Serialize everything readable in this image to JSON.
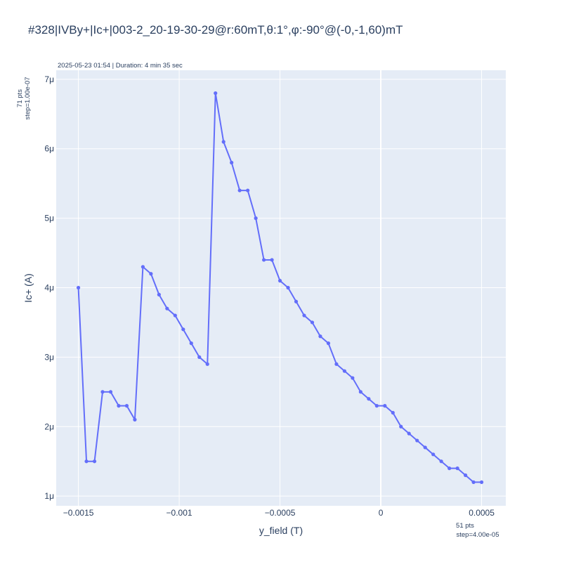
{
  "title": "#328|IVBy+|Ic+|003-2_20-19-30-29@r:60mT,θ:1°,φ:-90°@(-0,-1,60)mT",
  "header_note": "2025-05-23 01:54 | Duration: 4 min 35 sec",
  "y_points_note": [
    "71 pts",
    "step=1.00e-07"
  ],
  "x_points_note": [
    "51 pts",
    "step=4.00e-05"
  ],
  "colors": {
    "plot_bg": "#e5ecf6",
    "grid": "#ffffff",
    "line": "#636efa",
    "text": "#2a3f5f"
  },
  "chart_data": {
    "type": "line",
    "xlabel": "y_field (T)",
    "ylabel": "Ic+ (A)",
    "xlim": [
      -0.00161,
      0.00062
    ],
    "ylim": [
      8.6e-07,
      7.13e-06
    ],
    "x_ticks": [
      {
        "value": -0.0015,
        "label": "−0.0015"
      },
      {
        "value": -0.001,
        "label": "−0.001"
      },
      {
        "value": -0.0005,
        "label": "−0.0005"
      },
      {
        "value": 0,
        "label": "0"
      },
      {
        "value": 0.0005,
        "label": "0.0005"
      }
    ],
    "y_ticks": [
      {
        "value": 1e-06,
        "label": "1μ"
      },
      {
        "value": 2e-06,
        "label": "2μ"
      },
      {
        "value": 3e-06,
        "label": "3μ"
      },
      {
        "value": 4e-06,
        "label": "4μ"
      },
      {
        "value": 5e-06,
        "label": "5μ"
      },
      {
        "value": 6e-06,
        "label": "6μ"
      },
      {
        "value": 7e-06,
        "label": "7μ"
      }
    ],
    "grid": true,
    "series": [
      {
        "x": [
          -0.0015,
          -0.00146,
          -0.00142,
          -0.00138,
          -0.00134,
          -0.0013,
          -0.00126,
          -0.00122,
          -0.00118,
          -0.00114,
          -0.0011,
          -0.00106,
          -0.00102,
          -0.00098,
          -0.00094,
          -0.0009,
          -0.00086,
          -0.00082,
          -0.00078,
          -0.00074,
          -0.0007,
          -0.00066,
          -0.00062,
          -0.00058,
          -0.00054,
          -0.0005,
          -0.00046,
          -0.00042,
          -0.00038,
          -0.00034,
          -0.0003,
          -0.00026,
          -0.00022,
          -0.00018,
          -0.00014,
          -0.0001,
          -6e-05,
          -2e-05,
          2e-05,
          6e-05,
          0.0001,
          0.00014,
          0.00018,
          0.00022,
          0.00026,
          0.0003,
          0.00034,
          0.00038,
          0.00042,
          0.00046,
          0.0005
        ],
        "y": [
          4e-06,
          1.5e-06,
          1.5e-06,
          2.5e-06,
          2.5e-06,
          2.3e-06,
          2.3e-06,
          2.1e-06,
          4.3e-06,
          4.2e-06,
          3.9e-06,
          3.7e-06,
          3.6e-06,
          3.4e-06,
          3.2e-06,
          3e-06,
          2.9e-06,
          6.8e-06,
          6.1e-06,
          5.8e-06,
          5.4e-06,
          5.4e-06,
          5e-06,
          4.4e-06,
          4.4e-06,
          4.1e-06,
          4e-06,
          3.8e-06,
          3.6e-06,
          3.5e-06,
          3.3e-06,
          3.2e-06,
          2.9e-06,
          2.8e-06,
          2.7e-06,
          2.5e-06,
          2.4e-06,
          2.3e-06,
          2.3e-06,
          2.2e-06,
          2e-06,
          1.9e-06,
          1.8e-06,
          1.7e-06,
          1.6e-06,
          1.5e-06,
          1.4e-06,
          1.4e-06,
          1.3e-06,
          1.2e-06,
          1.2e-06
        ]
      }
    ]
  }
}
